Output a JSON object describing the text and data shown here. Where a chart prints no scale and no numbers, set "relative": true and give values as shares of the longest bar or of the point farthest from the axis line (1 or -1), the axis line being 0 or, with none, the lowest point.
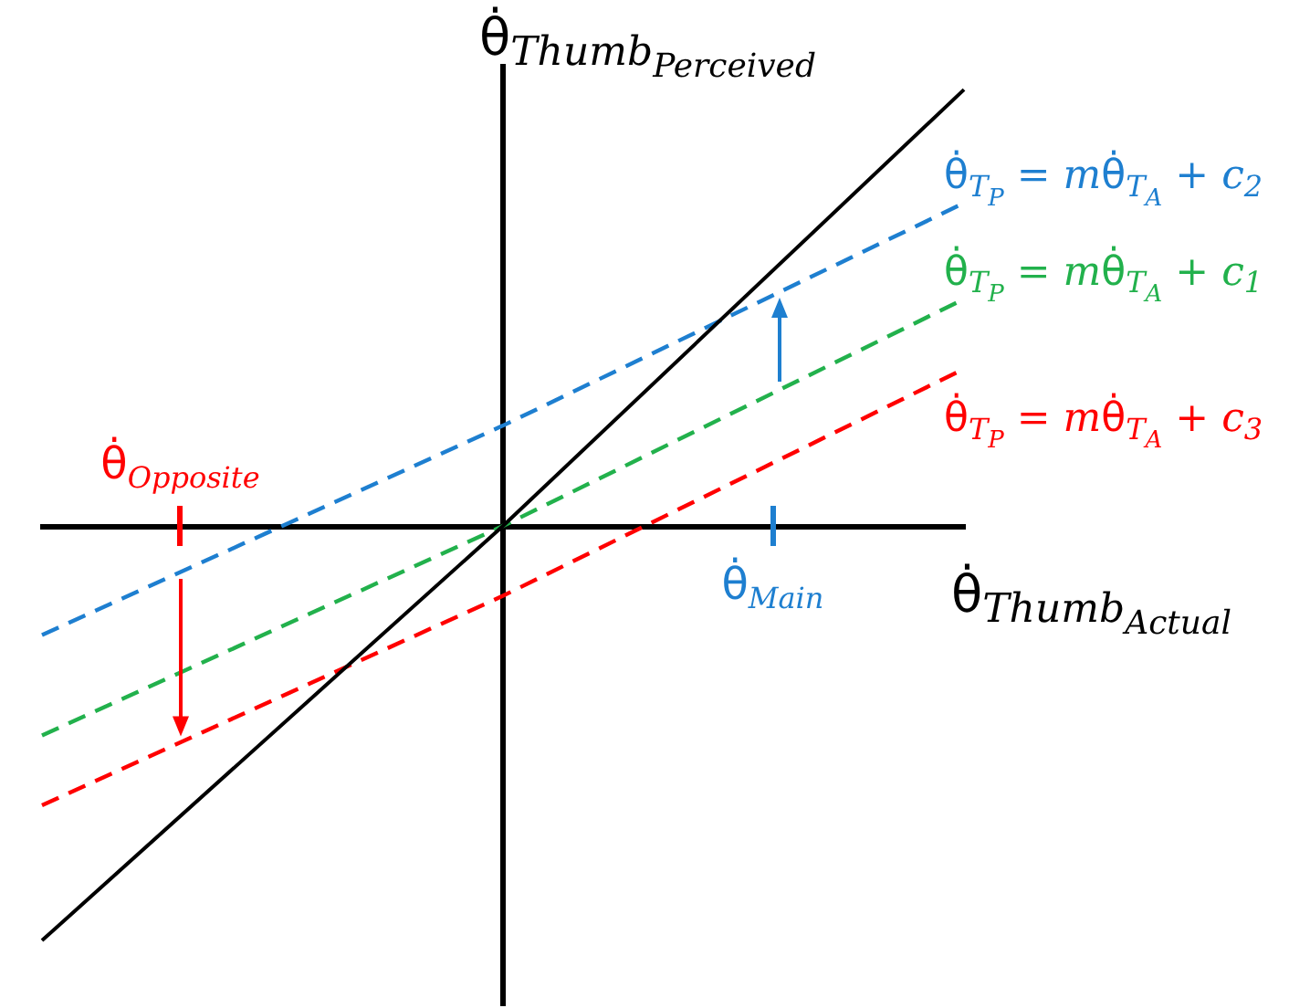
{
  "chart_data": {
    "type": "line",
    "relative": true,
    "categories": [
      null,
      null,
      null
    ],
    "xlabel": "θ̇$_{Thumb}$$_{Actual}$",
    "ylabel": "θ̇$_{Thumb}$$_{Perceived}$",
    "series": [
      {
        "color": "#000000",
        "values": [
          -0.95,
          0,
          1
        ]
      },
      {
        "name": "θ̇$_{T}$$_{P}$ = mθ̇$_{T}$$_{A}$ + c$_{2}$",
        "color": "#1e7fd0",
        "values": [
          -0.25,
          0.23,
          0.74
        ],
        "line_style": "dashed"
      },
      {
        "name": "θ̇$_{T}$$_{P}$ = mθ̇$_{T}$$_{A}$ + c$_{1}$",
        "color": "#22b14c",
        "values": [
          -0.48,
          0,
          0.52
        ],
        "line_style": "dashed"
      },
      {
        "name": "θ̇$_{T}$$_{P}$ = mθ̇$_{T}$$_{A}$ + c$_{3}$",
        "color": "#ff0000",
        "values": [
          -0.64,
          -0.16,
          0.36
        ],
        "line_style": "dashed"
      }
    ],
    "annotations": [
      "θ̇$_{Opposite}$",
      "θ̇$_{Main}$"
    ],
    "legend": false
  }
}
